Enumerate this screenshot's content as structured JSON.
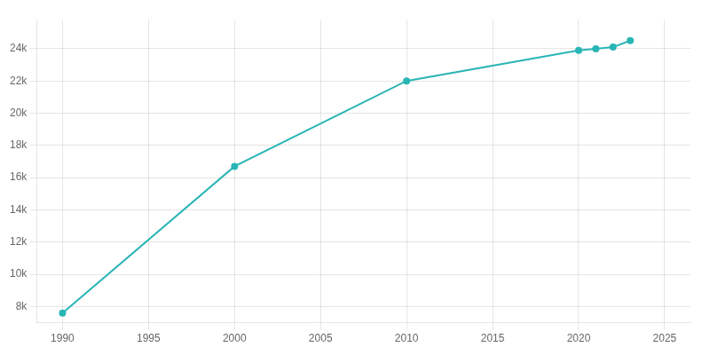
{
  "chart_data": {
    "type": "line",
    "x": [
      1990,
      2000,
      2010,
      2020,
      2021,
      2022,
      2023
    ],
    "values": [
      7595,
      16700,
      22000,
      23900,
      24000,
      24100,
      24500
    ],
    "color": "#2ab5b5",
    "marker": "circle",
    "xlim": [
      1988.5,
      2026.5
    ],
    "xticks": [
      1990,
      1995,
      2000,
      2005,
      2010,
      2015,
      2020,
      2025
    ],
    "ylim": [
      7000,
      25800
    ],
    "yticks": [
      {
        "value": 8000,
        "label": "8k"
      },
      {
        "value": 10000,
        "label": "10k"
      },
      {
        "value": 12000,
        "label": "12k"
      },
      {
        "value": 14000,
        "label": "14k"
      },
      {
        "value": 16000,
        "label": "16k"
      },
      {
        "value": 18000,
        "label": "18k"
      },
      {
        "value": 20000,
        "label": "20k"
      },
      {
        "value": 22000,
        "label": "22k"
      },
      {
        "value": 24000,
        "label": "24k"
      }
    ],
    "grid": true
  }
}
